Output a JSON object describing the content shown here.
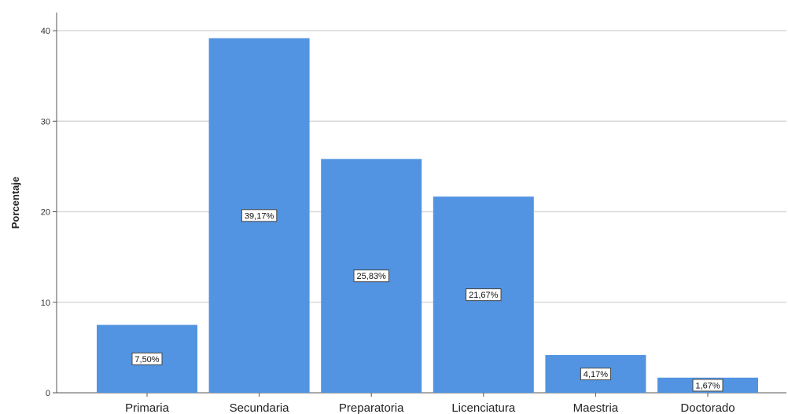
{
  "chart_data": {
    "type": "bar",
    "title": "",
    "xlabel": "",
    "ylabel": "Porcentaje",
    "ylim": [
      0,
      42
    ],
    "yticks": [
      0,
      10,
      20,
      30,
      40
    ],
    "grid": true,
    "categories": [
      "Primaria",
      "Secundaria",
      "Preparatoria",
      "Licenciatura",
      "Maestria",
      "Doctorado"
    ],
    "values": [
      7.5,
      39.17,
      25.83,
      21.67,
      4.17,
      1.67
    ],
    "data_labels": [
      "7,50%",
      "39,17%",
      "25,83%",
      "21,67%",
      "4,17%",
      "1,67%"
    ],
    "bar_color": "#5294e2",
    "grid_color": "#d9d9d9"
  }
}
